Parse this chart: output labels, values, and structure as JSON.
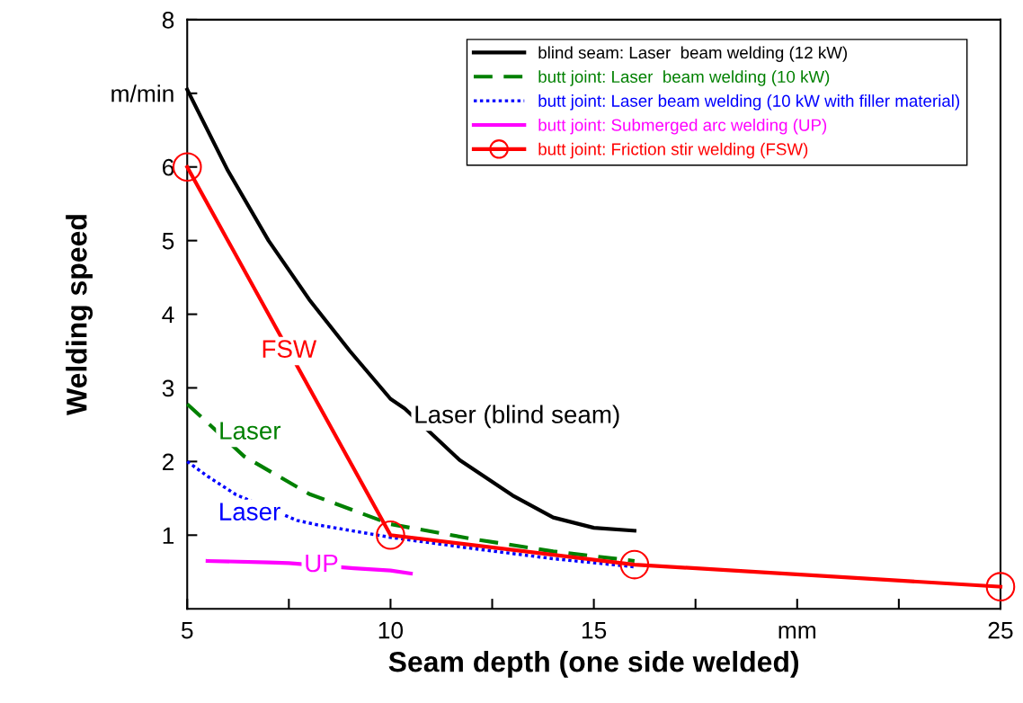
{
  "chart_data": {
    "type": "line",
    "xlabel": "Seam depth (one side welded)",
    "ylabel": "Welding speed",
    "xlim": [
      5,
      25
    ],
    "xticks": [
      5,
      {
        "value": 7.5,
        "label": null
      },
      10,
      {
        "value": 12.5,
        "label": null
      },
      15,
      {
        "value": 17.5,
        "label": null
      },
      {
        "value": 20,
        "label": "mm"
      },
      {
        "value": 22.5,
        "label": null
      },
      25
    ],
    "ylim": [
      0,
      8
    ],
    "yticks": [
      1,
      2,
      3,
      4,
      5,
      6,
      {
        "value": 7,
        "label": "m/min"
      },
      8
    ],
    "grid": false,
    "legend": "top right",
    "series": [
      {
        "name": "blind seam: Laser  beam welding (12 kW)",
        "color": "#000000",
        "line_style": "solid",
        "marker": "none",
        "x": [
          5,
          6,
          7,
          8,
          9,
          10,
          10.35,
          11.7,
          13,
          14,
          15,
          16
        ],
        "values": [
          7.05,
          5.95,
          5.0,
          4.2,
          3.5,
          2.85,
          2.72,
          2.02,
          1.54,
          1.24,
          1.1,
          1.06
        ]
      },
      {
        "name": "butt joint: Laser  beam welding (10 kW)",
        "color": "#008000",
        "line_style": "dashed",
        "marker": "none",
        "x": [
          5,
          6.4,
          8,
          10,
          12,
          14,
          16
        ],
        "values": [
          2.78,
          2.07,
          1.56,
          1.15,
          0.95,
          0.78,
          0.65
        ]
      },
      {
        "name": "butt joint: Laser beam welding (10 kW with filler material)",
        "color": "#0000ff",
        "line_style": "dotted",
        "marker": "none",
        "x": [
          5,
          5.5,
          6.2,
          7.7,
          8.2,
          10,
          12,
          14,
          16
        ],
        "values": [
          2.0,
          1.8,
          1.55,
          1.2,
          1.14,
          0.97,
          0.82,
          0.68,
          0.57
        ]
      },
      {
        "name": "butt joint: Submerged arc welding (UP)",
        "color": "#ff00ff",
        "line_style": "solid",
        "marker": "none",
        "x": [
          5.5,
          7,
          7.5,
          9.1,
          10,
          10.5
        ],
        "values": [
          0.65,
          0.63,
          0.62,
          0.55,
          0.52,
          0.48
        ]
      },
      {
        "name": "butt joint: Friction stir welding (FSW)",
        "color": "#ff0000",
        "line_style": "solid",
        "marker": "circle",
        "x": [
          5,
          10,
          16,
          25
        ],
        "values": [
          6,
          1,
          0.6,
          0.3
        ]
      }
    ],
    "annotations": [
      {
        "text": "FSW",
        "x": 7.5,
        "y": 3.5
      },
      {
        "text": "Laser",
        "x": 5.77,
        "y": 2.39
      },
      {
        "text": "Laser",
        "x": 7.3,
        "y": 1.29
      },
      {
        "text": "UP",
        "x": 8.3,
        "y": 0.59
      },
      {
        "text": "Laser (blind seam)",
        "x": 10.57,
        "y": 2.61
      }
    ]
  }
}
